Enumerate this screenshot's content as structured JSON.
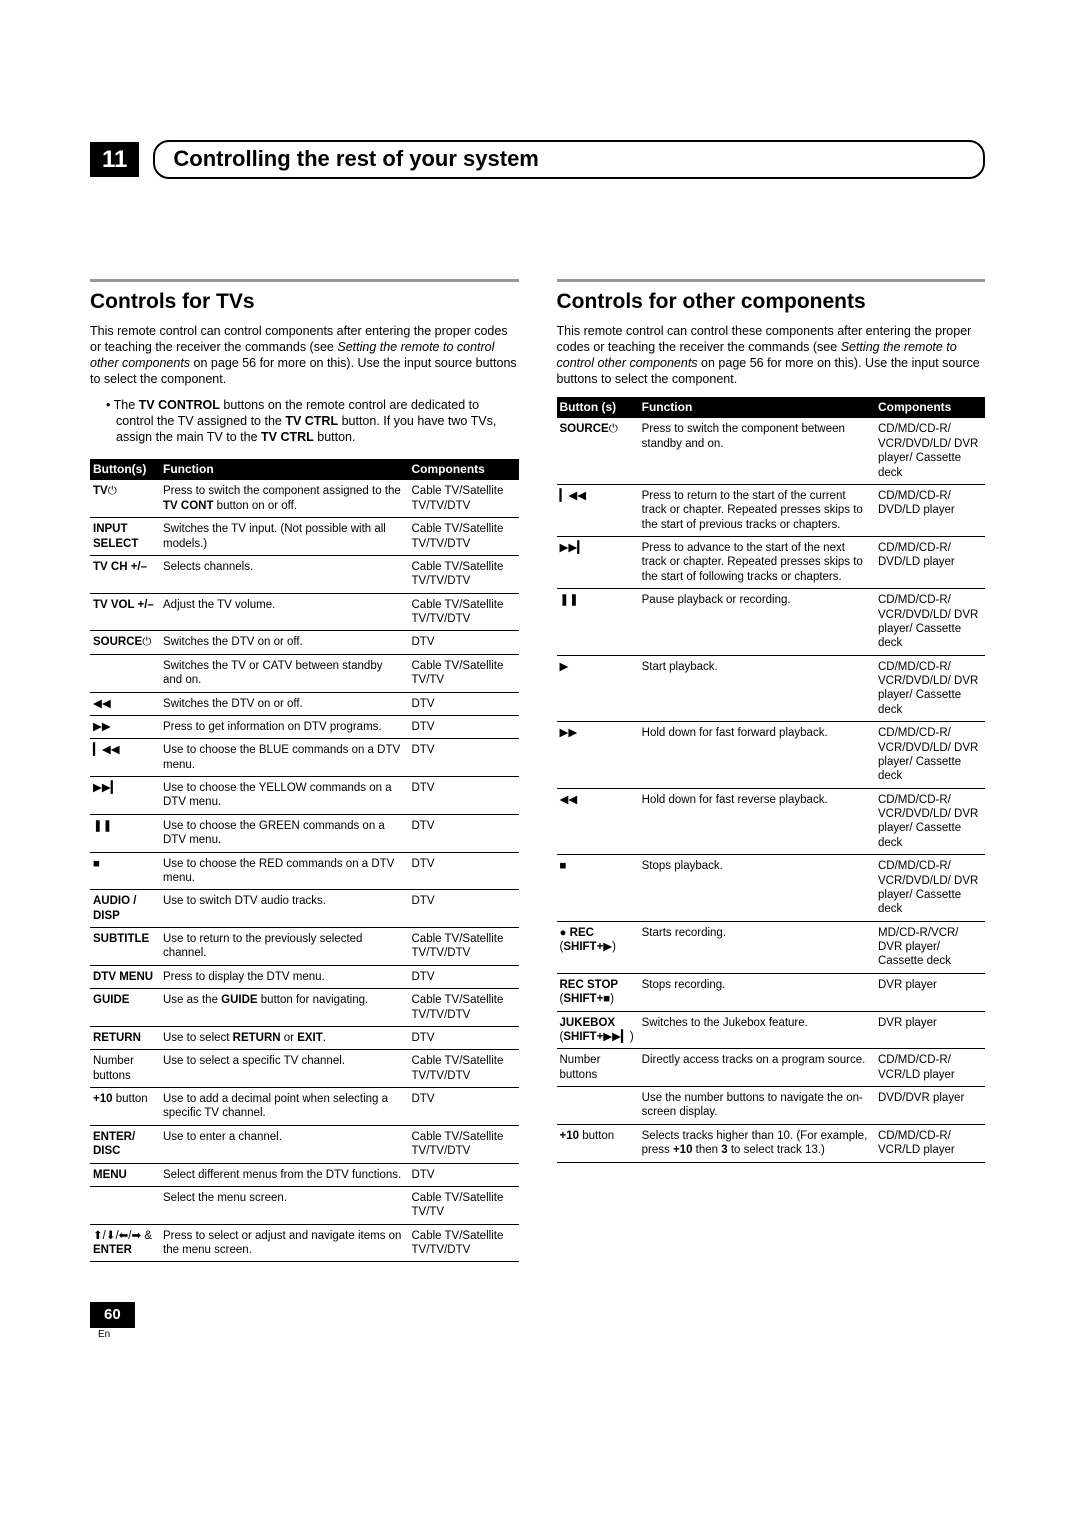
{
  "chapter": {
    "num": "11",
    "title": "Controlling the rest of your system"
  },
  "left": {
    "title": "Controls for TVs",
    "intro_html": "This remote control can control components after entering the proper codes or teaching the receiver the commands (see <em>Setting the remote to control other components</em> on page 56 for more on this). Use the input source buttons to select the component.",
    "bullet_html": "The <b>TV CONTROL</b> buttons on the remote control are dedicated to control the TV assigned to the <b>TV CTRL</b> button. If you have two TVs, assign the main TV to the <b>TV CTRL</b> button.",
    "headers": [
      "Button(s)",
      "Function",
      "Components"
    ],
    "rows": [
      {
        "b": "<b>TV</b>⏻",
        "f": "Press to switch the component assigned to the <b>TV CONT</b> button on or off.",
        "c": "Cable TV/Satellite TV/TV/DTV"
      },
      {
        "b": "<b>INPUT SELECT</b>",
        "f": "Switches the TV input. (Not possible with all models.)",
        "c": "Cable TV/Satellite TV/TV/DTV"
      },
      {
        "b": "<b>TV CH +/–</b>",
        "f": "Selects channels.",
        "c": "Cable TV/Satellite TV/TV/DTV"
      },
      {
        "b": "<b>TV VOL +/–</b>",
        "f": "Adjust the TV volume.",
        "c": "Cable TV/Satellite TV/TV/DTV"
      },
      {
        "b": "<b>SOURCE</b>⏻",
        "f": "Switches the DTV on or off.",
        "c": "DTV"
      },
      {
        "b": "",
        "f": "Switches the TV or CATV between standby and on.",
        "c": "Cable TV/Satellite TV/TV"
      },
      {
        "b": "◀◀",
        "f": "Switches the DTV on or off.",
        "c": "DTV"
      },
      {
        "b": "▶▶",
        "f": "Press to get information on DTV programs.",
        "c": "DTV"
      },
      {
        "b": "▎◀◀",
        "f": "Use to choose the BLUE commands on a DTV menu.",
        "c": "DTV"
      },
      {
        "b": "▶▶▎",
        "f": "Use to choose the YELLOW commands on a DTV menu.",
        "c": "DTV"
      },
      {
        "b": "❚❚",
        "f": "Use to choose the GREEN commands on a DTV menu.",
        "c": "DTV"
      },
      {
        "b": "■",
        "f": "Use to choose the RED commands on a DTV menu.",
        "c": "DTV"
      },
      {
        "b": "<b>AUDIO / DISP</b>",
        "f": "Use to switch DTV audio tracks.",
        "c": "DTV"
      },
      {
        "b": "<b>SUBTITLE</b>",
        "f": "Use to return to the previously selected channel.",
        "c": "Cable TV/Satellite TV/TV/DTV"
      },
      {
        "b": "<b>DTV MENU</b>",
        "f": "Press to display the DTV menu.",
        "c": "DTV"
      },
      {
        "b": "<b>GUIDE</b>",
        "f": "Use as the <b>GUIDE</b> button for navigating.",
        "c": "Cable TV/Satellite TV/TV/DTV"
      },
      {
        "b": "<b>RETURN</b>",
        "f": "Use to select <b>RETURN</b> or <b>EXIT</b>.",
        "c": "DTV"
      },
      {
        "b": "Number buttons",
        "f": "Use to select a specific TV channel.",
        "c": "Cable TV/Satellite TV/TV/DTV"
      },
      {
        "b": "<b>+10</b> button",
        "f": "Use to add a decimal point when selecting a specific TV channel.",
        "c": "DTV"
      },
      {
        "b": "<b>ENTER/ DISC</b>",
        "f": "Use to enter a channel.",
        "c": "Cable TV/Satellite TV/TV/DTV"
      },
      {
        "b": "<b>MENU</b>",
        "f": "Select different menus from the DTV functions.",
        "c": "DTV"
      },
      {
        "b": "",
        "f": "Select the menu screen.",
        "c": "Cable TV/Satellite TV/TV"
      },
      {
        "b": "⬆/⬇/⬅/➡ & <b>ENTER</b>",
        "f": "Press to select or adjust and navigate items on the menu screen.",
        "c": "Cable TV/Satellite TV/TV/DTV"
      }
    ]
  },
  "right": {
    "title": "Controls for other components",
    "intro_html": "This remote control can control these components after entering the proper codes or teaching the receiver the commands (see <em>Setting the remote to control other components</em> on page 56 for more on this). Use the input source buttons to select the component.",
    "headers": [
      "Button (s)",
      "Function",
      "Components"
    ],
    "rows": [
      {
        "b": "<b>SOURCE</b>⏻",
        "f": "Press to switch the component between standby and on.",
        "c": "CD/MD/CD-R/ VCR/DVD/LD/ DVR player/ Cassette deck"
      },
      {
        "b": "▎◀◀",
        "f": "Press to return to the start of the current track or chapter. Repeated presses skips to the start of previous tracks or chapters.",
        "c": "CD/MD/CD-R/ DVD/LD player"
      },
      {
        "b": "▶▶▎",
        "f": "Press to advance to the start of the next track or chapter. Repeated presses skips to the start of following tracks or chapters.",
        "c": "CD/MD/CD-R/ DVD/LD player"
      },
      {
        "b": "❚❚",
        "f": "Pause playback or recording.",
        "c": "CD/MD/CD-R/ VCR/DVD/LD/ DVR player/ Cassette deck"
      },
      {
        "b": "▶",
        "f": "Start playback.",
        "c": "CD/MD/CD-R/ VCR/DVD/LD/ DVR player/ Cassette deck"
      },
      {
        "b": "▶▶",
        "f": "Hold down for fast forward playback.",
        "c": "CD/MD/CD-R/ VCR/DVD/LD/ DVR player/ Cassette deck"
      },
      {
        "b": "◀◀",
        "f": "Hold down for fast reverse playback.",
        "c": "CD/MD/CD-R/ VCR/DVD/LD/ DVR player/ Cassette deck"
      },
      {
        "b": "■",
        "f": "Stops playback.",
        "c": "CD/MD/CD-R/ VCR/DVD/LD/ DVR player/ Cassette deck"
      },
      {
        "b": "● <b>REC</b> (<b>SHIFT+</b>▶)",
        "f": "Starts recording.",
        "c": "MD/CD-R/VCR/ DVR player/ Cassette deck"
      },
      {
        "b": "<b>REC STOP</b> (<b>SHIFT+</b>■)",
        "f": "Stops recording.",
        "c": "DVR player"
      },
      {
        "b": "<b>JUKEBOX</b> (<b>SHIFT+</b>▶▶▎)",
        "f": "Switches to the Jukebox feature.",
        "c": "DVR player"
      },
      {
        "b": "Number buttons",
        "f": "Directly access tracks on a program source.",
        "c": "CD/MD/CD-R/ VCR/LD player"
      },
      {
        "b": "",
        "f": "Use the number buttons to navigate the on-screen display.",
        "c": "DVD/DVR player"
      },
      {
        "b": "<b>+10</b> button",
        "f": "Selects tracks higher than 10. (For example, press <b>+10</b> then <b>3</b> to select track 13.)",
        "c": "CD/MD/CD-R/ VCR/LD player"
      }
    ]
  },
  "page": {
    "num": "60",
    "lang": "En"
  }
}
